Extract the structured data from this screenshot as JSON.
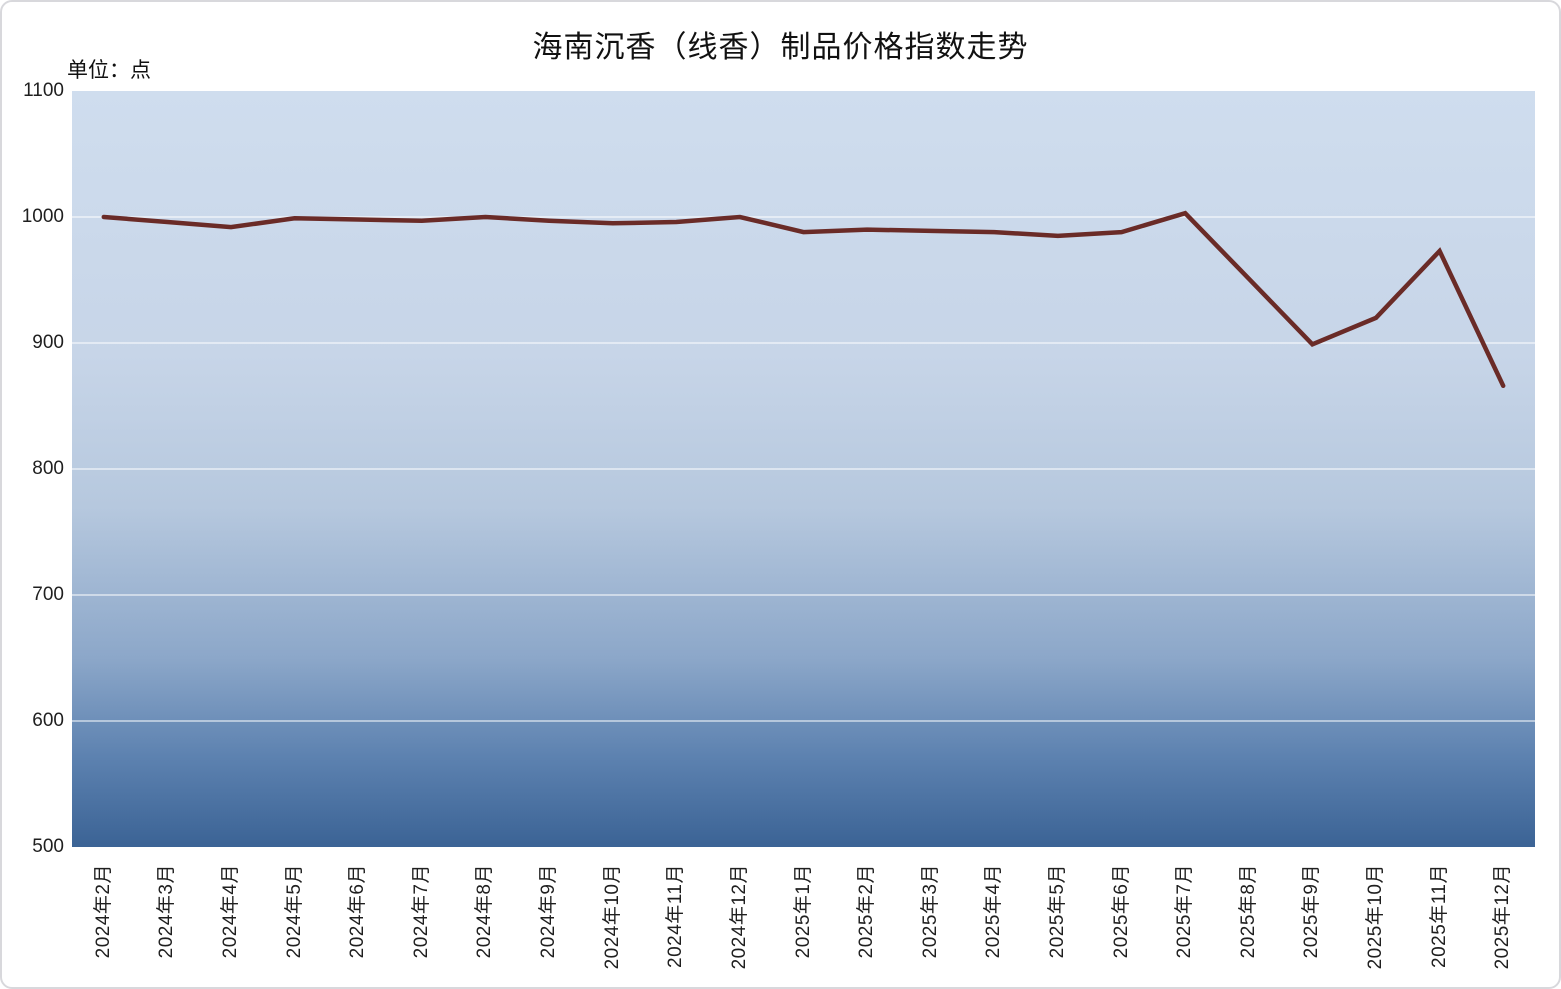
{
  "chart_data": {
    "type": "line",
    "title": "海南沉香（线香）制品价格指数走势",
    "unit_label": "单位：点",
    "categories": [
      "2024年2月",
      "2024年3月",
      "2024年4月",
      "2024年5月",
      "2024年6月",
      "2024年7月",
      "2024年8月",
      "2024年9月",
      "2024年10月",
      "2024年11月",
      "2024年12月",
      "2025年1月",
      "2025年2月",
      "2025年3月",
      "2025年4月",
      "2025年5月",
      "2025年6月",
      "2025年7月",
      "2025年8月",
      "2025年9月",
      "2025年10月",
      "2025年11月",
      "2025年12月"
    ],
    "series": [
      {
        "values": [
          1000,
          996,
          992,
          999,
          998,
          997,
          1000,
          997,
          995,
          996,
          1000,
          988,
          990,
          989,
          988,
          985,
          988,
          1003,
          951,
          899,
          920,
          973,
          866
        ]
      }
    ],
    "ylim": [
      500,
      1100
    ],
    "yticks": [
      500,
      600,
      700,
      800,
      900,
      1000,
      1100
    ],
    "grid": true,
    "legend": false,
    "line_color": "#6a2b27",
    "gridline_color": "rgba(255,255,255,0.8)",
    "plot_gradient": [
      "#cfddee 0%",
      "#c7d5e8 35%",
      "#b6c8de 55%",
      "#8ca7c9 75%",
      "#5d82b0 88%",
      "#3b6395 100%"
    ]
  }
}
